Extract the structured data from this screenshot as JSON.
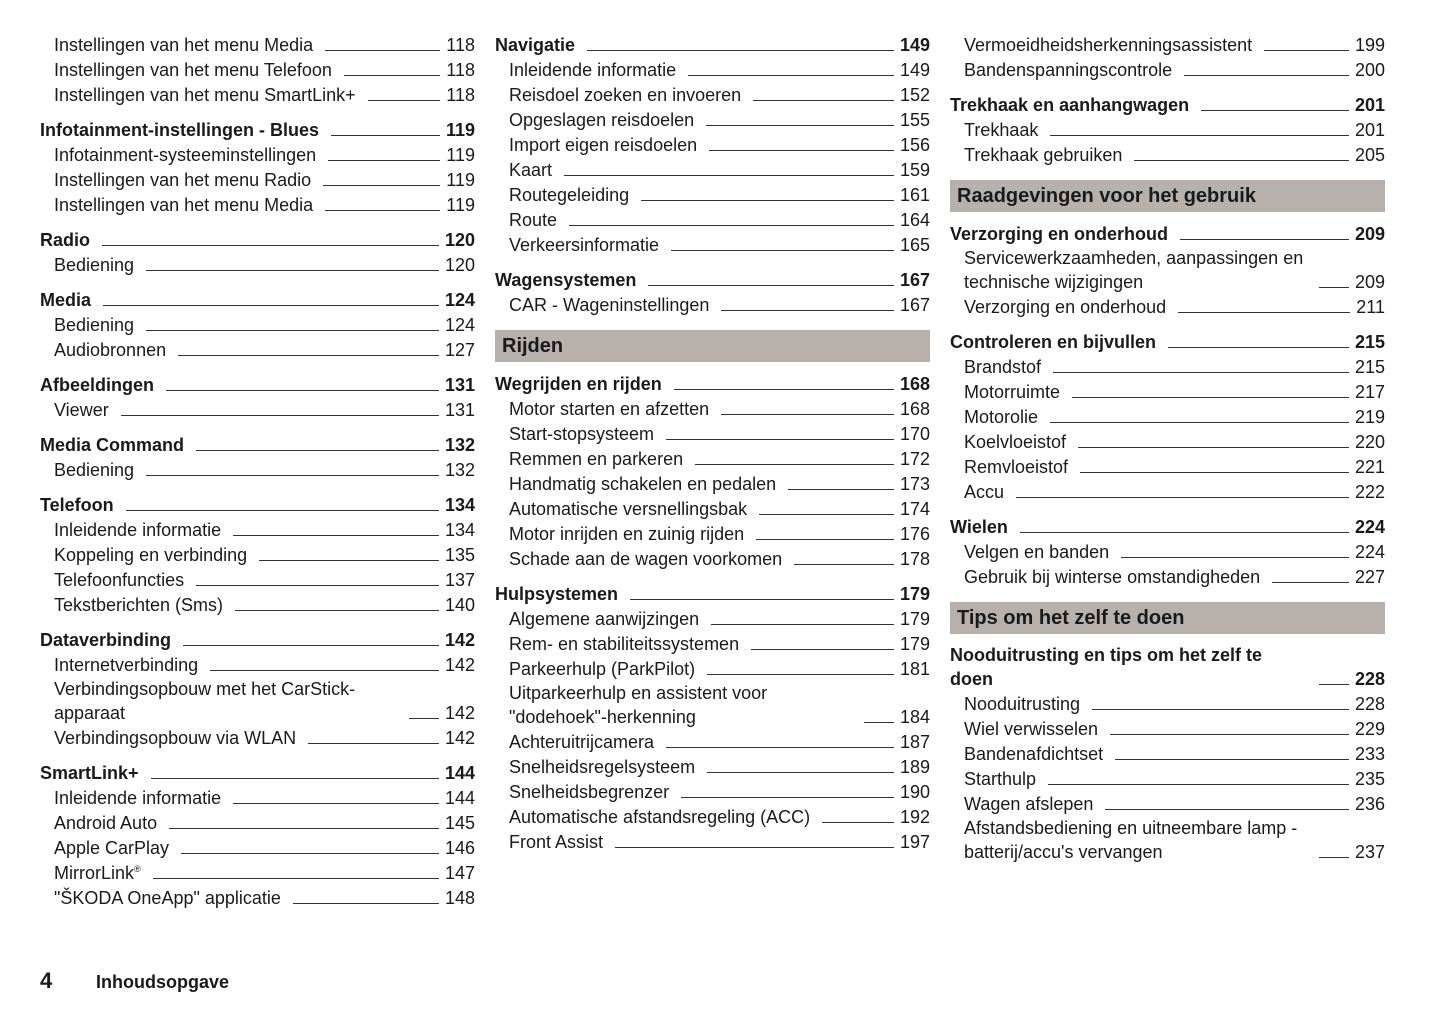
{
  "columns": [
    [
      {
        "type": "continuation",
        "entries": [
          {
            "title": "Instellingen van het menu Media",
            "page": "118"
          },
          {
            "title": "Instellingen van het menu Telefoon",
            "page": "118"
          },
          {
            "title": "Instellingen van het menu SmartLink+",
            "page": "118"
          }
        ]
      },
      {
        "type": "group",
        "title": "Infotainment-instellingen - Blues",
        "page": "119",
        "entries": [
          {
            "title": "Infotainment-systeeminstellingen",
            "page": "119"
          },
          {
            "title": "Instellingen van het menu Radio",
            "page": "119"
          },
          {
            "title": "Instellingen van het menu Media",
            "page": "119"
          }
        ]
      },
      {
        "type": "group",
        "title": "Radio",
        "page": "120",
        "entries": [
          {
            "title": "Bediening",
            "page": "120"
          }
        ]
      },
      {
        "type": "group",
        "title": "Media",
        "page": "124",
        "entries": [
          {
            "title": "Bediening",
            "page": "124"
          },
          {
            "title": "Audiobronnen",
            "page": "127"
          }
        ]
      },
      {
        "type": "group",
        "title": "Afbeeldingen",
        "page": "131",
        "entries": [
          {
            "title": "Viewer",
            "page": "131"
          }
        ]
      },
      {
        "type": "group",
        "title": "Media Command",
        "page": "132",
        "entries": [
          {
            "title": "Bediening",
            "page": "132"
          }
        ]
      },
      {
        "type": "group",
        "title": "Telefoon",
        "page": "134",
        "entries": [
          {
            "title": "Inleidende informatie",
            "page": "134"
          },
          {
            "title": "Koppeling en verbinding",
            "page": "135"
          },
          {
            "title": "Telefoonfuncties",
            "page": "137"
          },
          {
            "title": "Tekstberichten (Sms)",
            "page": "140"
          }
        ]
      },
      {
        "type": "group",
        "title": "Dataverbinding",
        "page": "142",
        "entries": [
          {
            "title": "Internetverbinding",
            "page": "142"
          },
          {
            "title": "Verbindingsopbouw met het CarStick-apparaat",
            "page": "142"
          },
          {
            "title": "Verbindingsopbouw via WLAN",
            "page": "142"
          }
        ]
      },
      {
        "type": "group",
        "title": "SmartLink+",
        "page": "144",
        "entries": [
          {
            "title": "Inleidende informatie",
            "page": "144"
          },
          {
            "title": "Android Auto",
            "page": "145"
          },
          {
            "title": "Apple CarPlay",
            "page": "146"
          },
          {
            "title": "MirrorLink®",
            "page": "147"
          },
          {
            "title": "\"ŠKODA OneApp\" applicatie",
            "page": "148"
          }
        ]
      }
    ],
    [
      {
        "type": "group",
        "title": "Navigatie",
        "page": "149",
        "entries": [
          {
            "title": "Inleidende informatie",
            "page": "149"
          },
          {
            "title": "Reisdoel zoeken en invoeren",
            "page": "152"
          },
          {
            "title": "Opgeslagen reisdoelen",
            "page": "155"
          },
          {
            "title": "Import eigen reisdoelen",
            "page": "156"
          },
          {
            "title": "Kaart",
            "page": "159"
          },
          {
            "title": "Routegeleiding",
            "page": "161"
          },
          {
            "title": "Route",
            "page": "164"
          },
          {
            "title": "Verkeersinformatie",
            "page": "165"
          }
        ]
      },
      {
        "type": "group",
        "title": "Wagensystemen",
        "page": "167",
        "entries": [
          {
            "title": "CAR - Wageninstellingen",
            "page": "167"
          }
        ]
      },
      {
        "type": "section",
        "title": "Rijden"
      },
      {
        "type": "group",
        "title": "Wegrijden en rijden",
        "page": "168",
        "entries": [
          {
            "title": "Motor starten en afzetten",
            "page": "168"
          },
          {
            "title": "Start-stopsysteem",
            "page": "170"
          },
          {
            "title": "Remmen en parkeren",
            "page": "172"
          },
          {
            "title": "Handmatig schakelen en pedalen",
            "page": "173"
          },
          {
            "title": "Automatische versnellingsbak",
            "page": "174"
          },
          {
            "title": "Motor inrijden en zuinig rijden",
            "page": "176"
          },
          {
            "title": "Schade aan de wagen voorkomen",
            "page": "178"
          }
        ]
      },
      {
        "type": "group",
        "title": "Hulpsystemen",
        "page": "179",
        "entries": [
          {
            "title": "Algemene aanwijzingen",
            "page": "179"
          },
          {
            "title": "Rem- en stabiliteitssystemen",
            "page": "179"
          },
          {
            "title": "Parkeerhulp (ParkPilot)",
            "page": "181"
          },
          {
            "title": "Uitparkeerhulp en assistent voor \"dodehoek\"-herkenning",
            "page": "184"
          },
          {
            "title": "Achteruitrijcamera",
            "page": "187"
          },
          {
            "title": "Snelheidsregelsysteem",
            "page": "189"
          },
          {
            "title": "Snelheidsbegrenzer",
            "page": "190"
          },
          {
            "title": "Automatische afstandsregeling (ACC)",
            "page": "192"
          },
          {
            "title": "Front Assist",
            "page": "197"
          }
        ]
      }
    ],
    [
      {
        "type": "continuation",
        "entries": [
          {
            "title": "Vermoeidheidsherkenningsassistent",
            "page": "199"
          },
          {
            "title": "Bandenspanningscontrole",
            "page": "200"
          }
        ]
      },
      {
        "type": "group",
        "title": "Trekhaak en aanhangwagen",
        "page": "201",
        "entries": [
          {
            "title": "Trekhaak",
            "page": "201"
          },
          {
            "title": "Trekhaak gebruiken",
            "page": "205"
          }
        ]
      },
      {
        "type": "section",
        "title": "Raadgevingen voor het gebruik"
      },
      {
        "type": "group",
        "title": "Verzorging en onderhoud",
        "page": "209",
        "entries": [
          {
            "title": "Servicewerkzaamheden, aanpassingen en technische wijzigingen",
            "page": "209"
          },
          {
            "title": "Verzorging en onderhoud",
            "page": "211"
          }
        ]
      },
      {
        "type": "group",
        "title": "Controleren en bijvullen",
        "page": "215",
        "entries": [
          {
            "title": "Brandstof",
            "page": "215"
          },
          {
            "title": "Motorruimte",
            "page": "217"
          },
          {
            "title": "Motorolie",
            "page": "219"
          },
          {
            "title": "Koelvloeistof",
            "page": "220"
          },
          {
            "title": "Remvloeistof",
            "page": "221"
          },
          {
            "title": "Accu",
            "page": "222"
          }
        ]
      },
      {
        "type": "group",
        "title": "Wielen",
        "page": "224",
        "entries": [
          {
            "title": "Velgen en banden",
            "page": "224"
          },
          {
            "title": "Gebruik bij winterse omstandigheden",
            "page": "227"
          }
        ]
      },
      {
        "type": "section",
        "title": "Tips om het zelf te doen"
      },
      {
        "type": "group",
        "title": "Nooduitrusting en tips om het zelf te doen",
        "page": "228",
        "entries": [
          {
            "title": "Nooduitrusting",
            "page": "228"
          },
          {
            "title": "Wiel verwisselen",
            "page": "229"
          },
          {
            "title": "Bandenafdichtset",
            "page": "233"
          },
          {
            "title": "Starthulp",
            "page": "235"
          },
          {
            "title": "Wagen afslepen",
            "page": "236"
          },
          {
            "title": "Afstandsbediening en uitneembare lamp - batterij/accu's vervangen",
            "page": "237"
          }
        ]
      }
    ]
  ],
  "footer": {
    "page_number": "4",
    "title": "Inhoudsopgave"
  },
  "colors": {
    "section_bar": "#b8b0ab",
    "text": "#1a1a1a"
  }
}
